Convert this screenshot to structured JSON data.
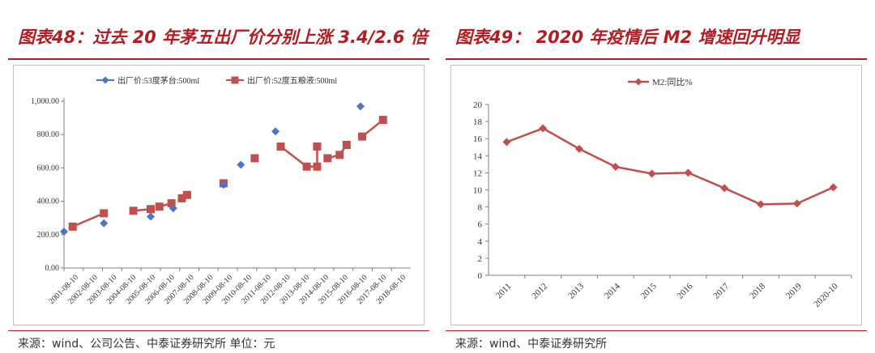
{
  "left": {
    "title": "图表48：过去 20 年茅五出厂价分别上涨 3.4/2.6 倍",
    "source": "来源：wind、公司公告、中泰证券研究所    单位：元"
  },
  "right": {
    "title": "图表49： 2020 年疫情后 M2 增速回升明显",
    "source": "来源：wind、中泰证券研究所"
  },
  "colors": {
    "brand_red": "#b11d22",
    "moutai_blue": "#4a76c4",
    "wuliangye_red": "#c0504d"
  },
  "chart_data": [
    {
      "type": "line",
      "title": "",
      "xlabel": "",
      "ylabel": "",
      "ylim": [
        0,
        1000
      ],
      "yticks": [
        "0.00",
        "200.00",
        "400.00",
        "600.00",
        "800.00",
        "1,000.00"
      ],
      "x_range": [
        0,
        20
      ],
      "categories": [
        "2001-08-10",
        "2002-08-10",
        "2003-08-10",
        "2004-08-10",
        "2005-08-10",
        "2006-08-10",
        "2007-08-10",
        "2008-08-10",
        "2009-08-10",
        "2010-08-10",
        "2011-08-10",
        "2012-08-10",
        "2013-08-10",
        "2014-08-10",
        "2015-08-10",
        "2016-08-10",
        "2017-08-10",
        "2018-08-10"
      ],
      "legend": "top",
      "series": [
        {
          "name": "出厂价:53度茅台:500ml",
          "marker": "diamond",
          "line": false,
          "points": [
            [
              0.0,
              218
            ],
            [
              2.3,
              268
            ],
            [
              5.0,
              308
            ],
            [
              6.3,
              358
            ],
            [
              9.2,
              499
            ],
            [
              10.2,
              619
            ],
            [
              12.2,
              819
            ],
            [
              17.1,
              969
            ]
          ]
        },
        {
          "name": "出厂价:52度五粮液:500ml",
          "marker": "square",
          "line": true,
          "segments": [
            [
              [
                0.5,
                248
              ],
              [
                2.3,
                328
              ]
            ],
            [
              [
                4.0,
                343
              ],
              [
                5.0,
                353
              ]
            ],
            [
              [
                5.5,
                368
              ],
              [
                6.2,
                388
              ]
            ],
            [
              [
                6.8,
                418
              ],
              [
                7.1,
                438
              ]
            ],
            [
              [
                9.2,
                508
              ]
            ],
            [
              [
                11.0,
                658
              ]
            ],
            [
              [
                12.5,
                728
              ],
              [
                14.0,
                608
              ],
              [
                14.6,
                608
              ],
              [
                14.6,
                728
              ]
            ],
            [
              [
                15.2,
                658
              ],
              [
                15.9,
                678
              ],
              [
                16.3,
                738
              ]
            ],
            [
              [
                17.2,
                788
              ],
              [
                18.4,
                888
              ]
            ]
          ]
        }
      ]
    },
    {
      "type": "line",
      "title": "",
      "xlabel": "",
      "ylabel": "",
      "ylim": [
        0,
        20
      ],
      "yticks": [
        "0",
        "2",
        "4",
        "6",
        "8",
        "10",
        "12",
        "14",
        "16",
        "18",
        "20"
      ],
      "categories": [
        "2011",
        "2012",
        "2013",
        "2014",
        "2015",
        "2016",
        "2017",
        "2018",
        "2019",
        "2020-10"
      ],
      "legend": "top",
      "series": [
        {
          "name": "M2:同比%",
          "marker": "diamond",
          "values": [
            15.6,
            17.2,
            14.8,
            12.7,
            11.9,
            12.0,
            10.2,
            8.3,
            8.4,
            10.3
          ]
        }
      ]
    }
  ]
}
